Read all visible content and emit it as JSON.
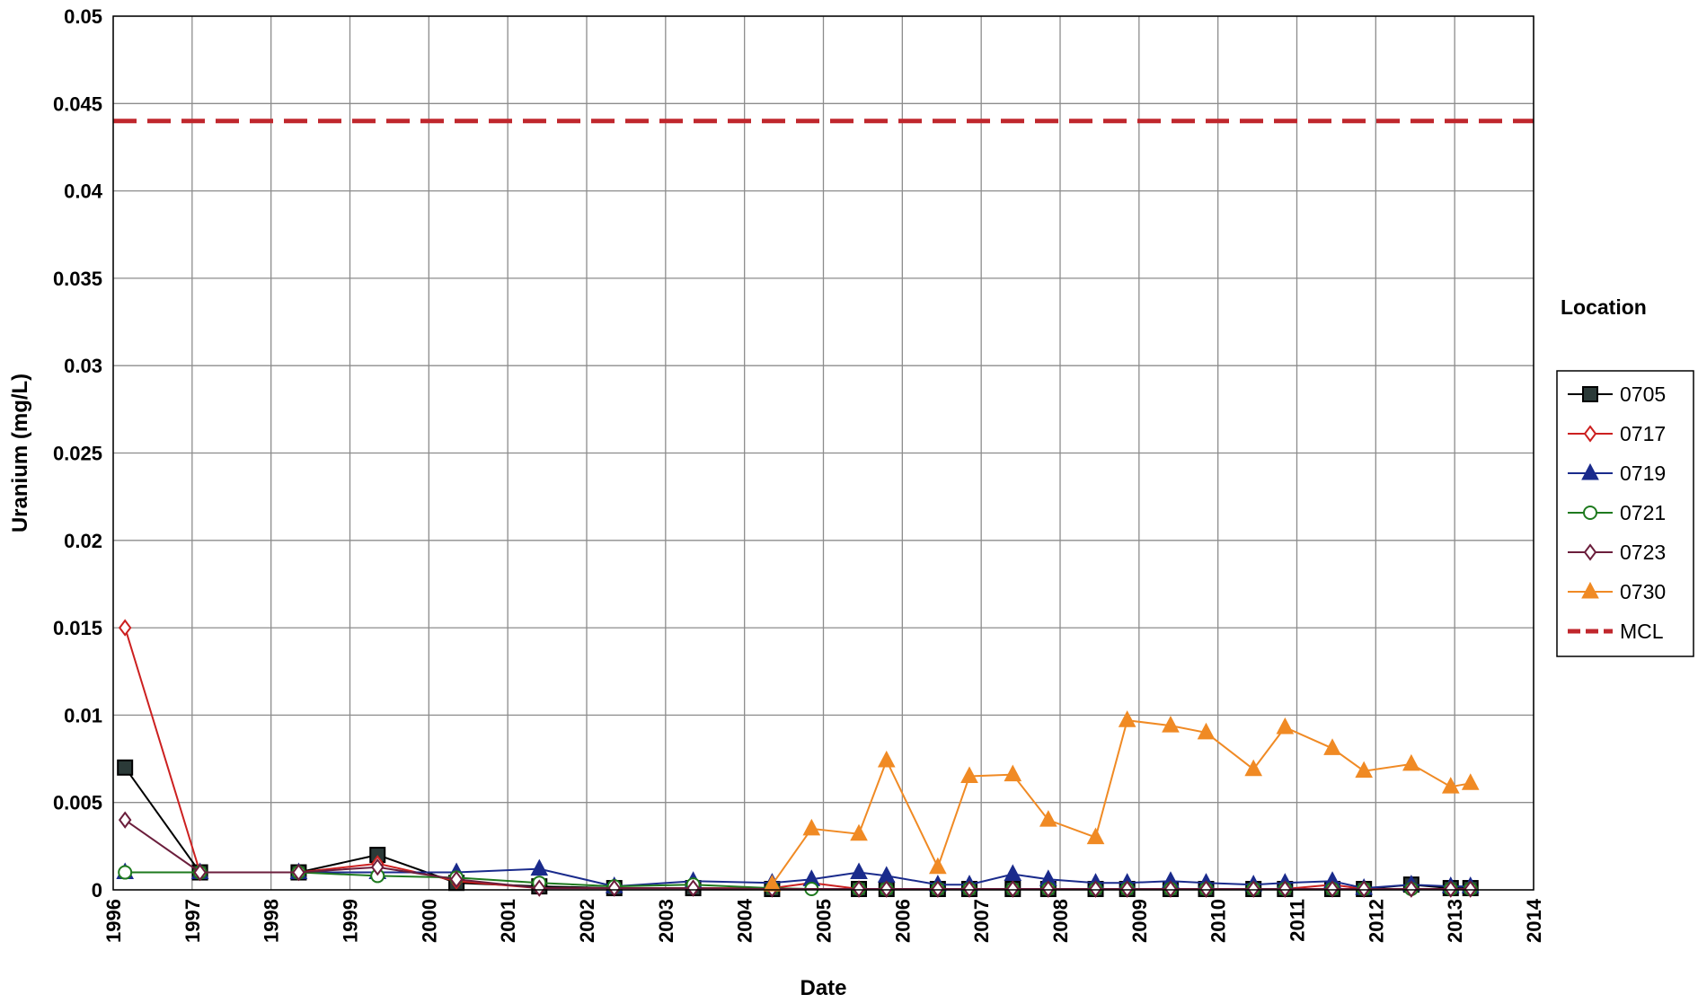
{
  "chart_data": {
    "type": "line",
    "xlabel": "Date",
    "ylabel": "Uranium (mg/L)",
    "xlim": [
      1996,
      2014
    ],
    "ylim": [
      0,
      0.05
    ],
    "x_ticks": [
      "1996",
      "1997",
      "1998",
      "1999",
      "2000",
      "2001",
      "2002",
      "2003",
      "2004",
      "2005",
      "2006",
      "2007",
      "2008",
      "2009",
      "2010",
      "2011",
      "2012",
      "2013",
      "2014"
    ],
    "y_ticks": [
      "0",
      "0.005",
      "0.01",
      "0.015",
      "0.02",
      "0.025",
      "0.03",
      "0.035",
      "0.04",
      "0.045",
      "0.05"
    ],
    "grid": true,
    "legend_title": "Location",
    "legend_position": "right",
    "series": [
      {
        "name": "0705",
        "color": "#000000",
        "marker": "square-filled",
        "points": [
          [
            1996.15,
            0.007
          ],
          [
            1997.1,
            0.001
          ],
          [
            1998.35,
            0.001
          ],
          [
            1999.35,
            0.002
          ],
          [
            2000.35,
            0.0004
          ],
          [
            2001.4,
            0.0002
          ],
          [
            2002.35,
            0.0001
          ],
          [
            2003.35,
            0.0001
          ],
          [
            2004.35,
            5e-05
          ],
          [
            2005.45,
            5e-05
          ],
          [
            2005.8,
            5e-05
          ],
          [
            2006.45,
            5e-05
          ],
          [
            2006.85,
            5e-05
          ],
          [
            2007.4,
            5e-05
          ],
          [
            2007.85,
            5e-05
          ],
          [
            2008.45,
            5e-05
          ],
          [
            2008.85,
            5e-05
          ],
          [
            2009.4,
            5e-05
          ],
          [
            2009.85,
            5e-05
          ],
          [
            2010.45,
            5e-05
          ],
          [
            2010.85,
            5e-05
          ],
          [
            2011.45,
            5e-05
          ],
          [
            2011.85,
            5e-05
          ],
          [
            2012.45,
            0.0003
          ],
          [
            2012.95,
            0.0001
          ],
          [
            2013.2,
            0.0001
          ]
        ]
      },
      {
        "name": "0717",
        "color": "#cc2020",
        "marker": "diamond-open",
        "points": [
          [
            1996.15,
            0.015
          ],
          [
            1997.1,
            0.001
          ],
          [
            1998.35,
            0.001
          ],
          [
            1999.35,
            0.0015
          ],
          [
            2000.35,
            0.0005
          ],
          [
            2001.4,
            0.0001
          ],
          [
            2002.35,
            0.0001
          ],
          [
            2003.35,
            0.0001
          ],
          [
            2004.35,
            0.0001
          ],
          [
            2004.85,
            0.0004
          ],
          [
            2005.45,
            5e-05
          ],
          [
            2005.8,
            5e-05
          ],
          [
            2006.45,
            5e-05
          ],
          [
            2006.85,
            5e-05
          ],
          [
            2007.4,
            5e-05
          ],
          [
            2007.85,
            5e-05
          ],
          [
            2008.45,
            5e-05
          ],
          [
            2008.85,
            5e-05
          ],
          [
            2009.4,
            5e-05
          ],
          [
            2009.85,
            5e-05
          ],
          [
            2010.45,
            5e-05
          ],
          [
            2010.85,
            5e-05
          ],
          [
            2011.45,
            0.0003
          ],
          [
            2011.85,
            5e-05
          ],
          [
            2012.45,
            5e-05
          ],
          [
            2012.95,
            5e-05
          ],
          [
            2013.2,
            5e-05
          ]
        ]
      },
      {
        "name": "0719",
        "color": "#1a2b8c",
        "marker": "triangle-filled",
        "points": [
          [
            1996.15,
            0.001
          ],
          [
            1997.1,
            0.001
          ],
          [
            1998.35,
            0.001
          ],
          [
            1999.35,
            0.001
          ],
          [
            2000.35,
            0.001
          ],
          [
            2001.4,
            0.0012
          ],
          [
            2002.35,
            0.0002
          ],
          [
            2003.35,
            0.0005
          ],
          [
            2004.35,
            0.0004
          ],
          [
            2004.85,
            0.0006
          ],
          [
            2005.45,
            0.001
          ],
          [
            2005.8,
            0.0008
          ],
          [
            2006.45,
            0.0003
          ],
          [
            2006.85,
            0.0003
          ],
          [
            2007.4,
            0.0009
          ],
          [
            2007.85,
            0.0006
          ],
          [
            2008.45,
            0.0004
          ],
          [
            2008.85,
            0.0004
          ],
          [
            2009.4,
            0.0005
          ],
          [
            2009.85,
            0.0004
          ],
          [
            2010.45,
            0.0003
          ],
          [
            2010.85,
            0.0004
          ],
          [
            2011.45,
            0.0005
          ],
          [
            2011.85,
            0.0001
          ],
          [
            2012.45,
            0.0003
          ],
          [
            2012.95,
            0.0002
          ],
          [
            2013.2,
            0.0002
          ]
        ]
      },
      {
        "name": "0721",
        "color": "#1e7a1e",
        "marker": "circle-open",
        "points": [
          [
            1996.15,
            0.001
          ],
          [
            1997.1,
            0.001
          ],
          [
            1998.35,
            0.001
          ],
          [
            1999.35,
            0.0008
          ],
          [
            2000.35,
            0.0007
          ],
          [
            2001.4,
            0.0004
          ],
          [
            2002.35,
            0.0002
          ],
          [
            2003.35,
            0.0003
          ],
          [
            2004.35,
            0.0001
          ],
          [
            2004.85,
            5e-05
          ],
          [
            2005.45,
            5e-05
          ],
          [
            2005.8,
            5e-05
          ],
          [
            2006.45,
            5e-05
          ],
          [
            2006.85,
            5e-05
          ],
          [
            2007.4,
            5e-05
          ],
          [
            2007.85,
            5e-05
          ],
          [
            2008.45,
            5e-05
          ],
          [
            2008.85,
            5e-05
          ],
          [
            2009.4,
            5e-05
          ],
          [
            2009.85,
            5e-05
          ],
          [
            2010.45,
            5e-05
          ],
          [
            2010.85,
            5e-05
          ],
          [
            2011.45,
            5e-05
          ],
          [
            2011.85,
            5e-05
          ],
          [
            2012.45,
            5e-05
          ],
          [
            2012.95,
            5e-05
          ],
          [
            2013.2,
            5e-05
          ]
        ]
      },
      {
        "name": "0723",
        "color": "#6b1e3c",
        "marker": "diamond-open",
        "points": [
          [
            1996.15,
            0.004
          ],
          [
            1997.1,
            0.001
          ],
          [
            1998.35,
            0.001
          ],
          [
            1999.35,
            0.0013
          ],
          [
            2000.35,
            0.0006
          ],
          [
            2001.4,
            0.0001
          ],
          [
            2002.35,
            0.0001
          ],
          [
            2003.35,
            0.0001
          ],
          [
            2004.35,
            5e-05
          ],
          [
            2005.45,
            5e-05
          ],
          [
            2005.8,
            5e-05
          ],
          [
            2006.45,
            5e-05
          ],
          [
            2006.85,
            5e-05
          ],
          [
            2007.4,
            5e-05
          ],
          [
            2007.85,
            5e-05
          ],
          [
            2008.45,
            5e-05
          ],
          [
            2008.85,
            5e-05
          ],
          [
            2009.4,
            5e-05
          ],
          [
            2009.85,
            5e-05
          ],
          [
            2010.45,
            5e-05
          ],
          [
            2010.85,
            5e-05
          ],
          [
            2011.45,
            5e-05
          ],
          [
            2011.85,
            5e-05
          ],
          [
            2012.45,
            5e-05
          ],
          [
            2012.95,
            5e-05
          ],
          [
            2013.2,
            5e-05
          ]
        ]
      },
      {
        "name": "0730",
        "color": "#f08a24",
        "marker": "triangle-filled",
        "points": [
          [
            2004.35,
            0.0003
          ],
          [
            2004.85,
            0.0035
          ],
          [
            2005.45,
            0.0032
          ],
          [
            2005.8,
            0.0074
          ],
          [
            2006.45,
            0.0013
          ],
          [
            2006.85,
            0.0065
          ],
          [
            2007.4,
            0.0066
          ],
          [
            2007.85,
            0.004
          ],
          [
            2008.45,
            0.003
          ],
          [
            2008.85,
            0.0097
          ],
          [
            2009.4,
            0.0094
          ],
          [
            2009.85,
            0.009
          ],
          [
            2010.45,
            0.0069
          ],
          [
            2010.85,
            0.0093
          ],
          [
            2011.45,
            0.0081
          ],
          [
            2011.85,
            0.0068
          ],
          [
            2012.45,
            0.0072
          ],
          [
            2012.95,
            0.0059
          ],
          [
            2013.2,
            0.0061
          ]
        ]
      },
      {
        "name": "MCL",
        "color": "#c0272d",
        "marker": "none",
        "dashed": true,
        "points": [
          [
            1996,
            0.044
          ],
          [
            2014,
            0.044
          ]
        ]
      }
    ]
  }
}
